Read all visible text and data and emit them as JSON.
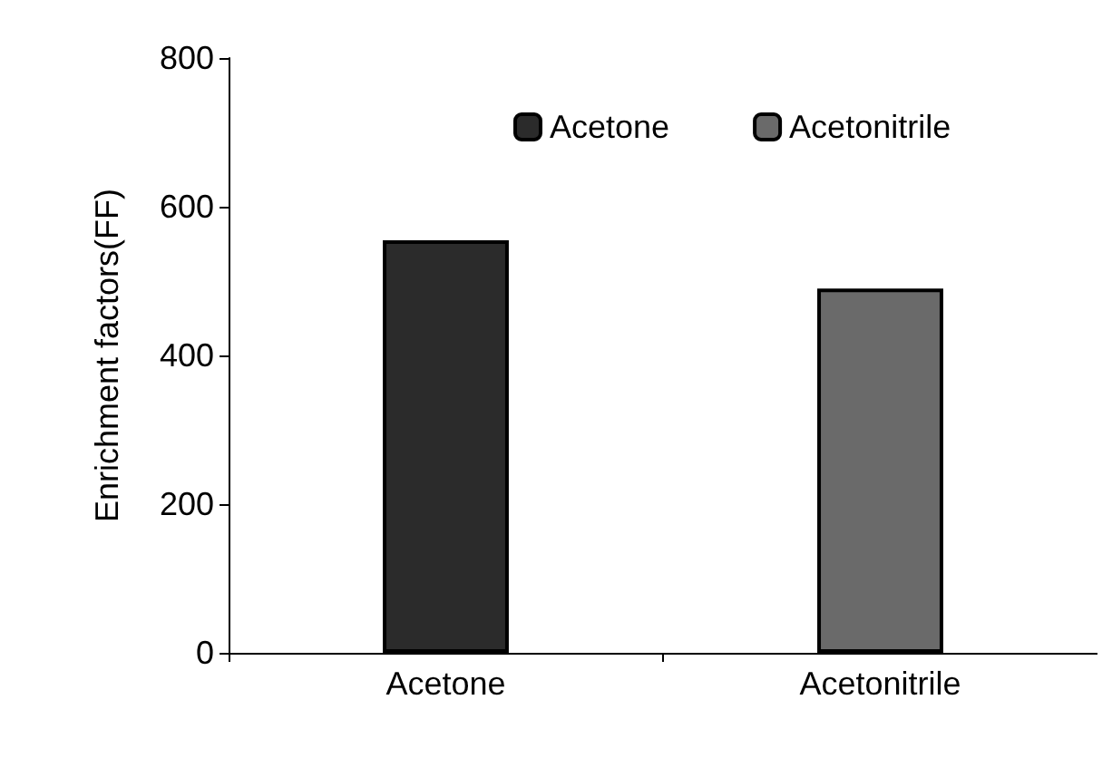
{
  "chart_data": {
    "type": "bar",
    "ylabel": "Enrichment factors(FF)",
    "categories": [
      "Acetone",
      "Acetonitrile"
    ],
    "series": [
      {
        "name": "Acetone",
        "color": "#2b2b2b",
        "values": [
          555,
          null
        ]
      },
      {
        "name": "Acetonitrile",
        "color": "#6a6a6a",
        "values": [
          null,
          490
        ]
      }
    ],
    "ylim": [
      0,
      800
    ],
    "yticks": [
      0,
      200,
      400,
      600,
      800
    ],
    "grid": false,
    "legend": "top"
  }
}
